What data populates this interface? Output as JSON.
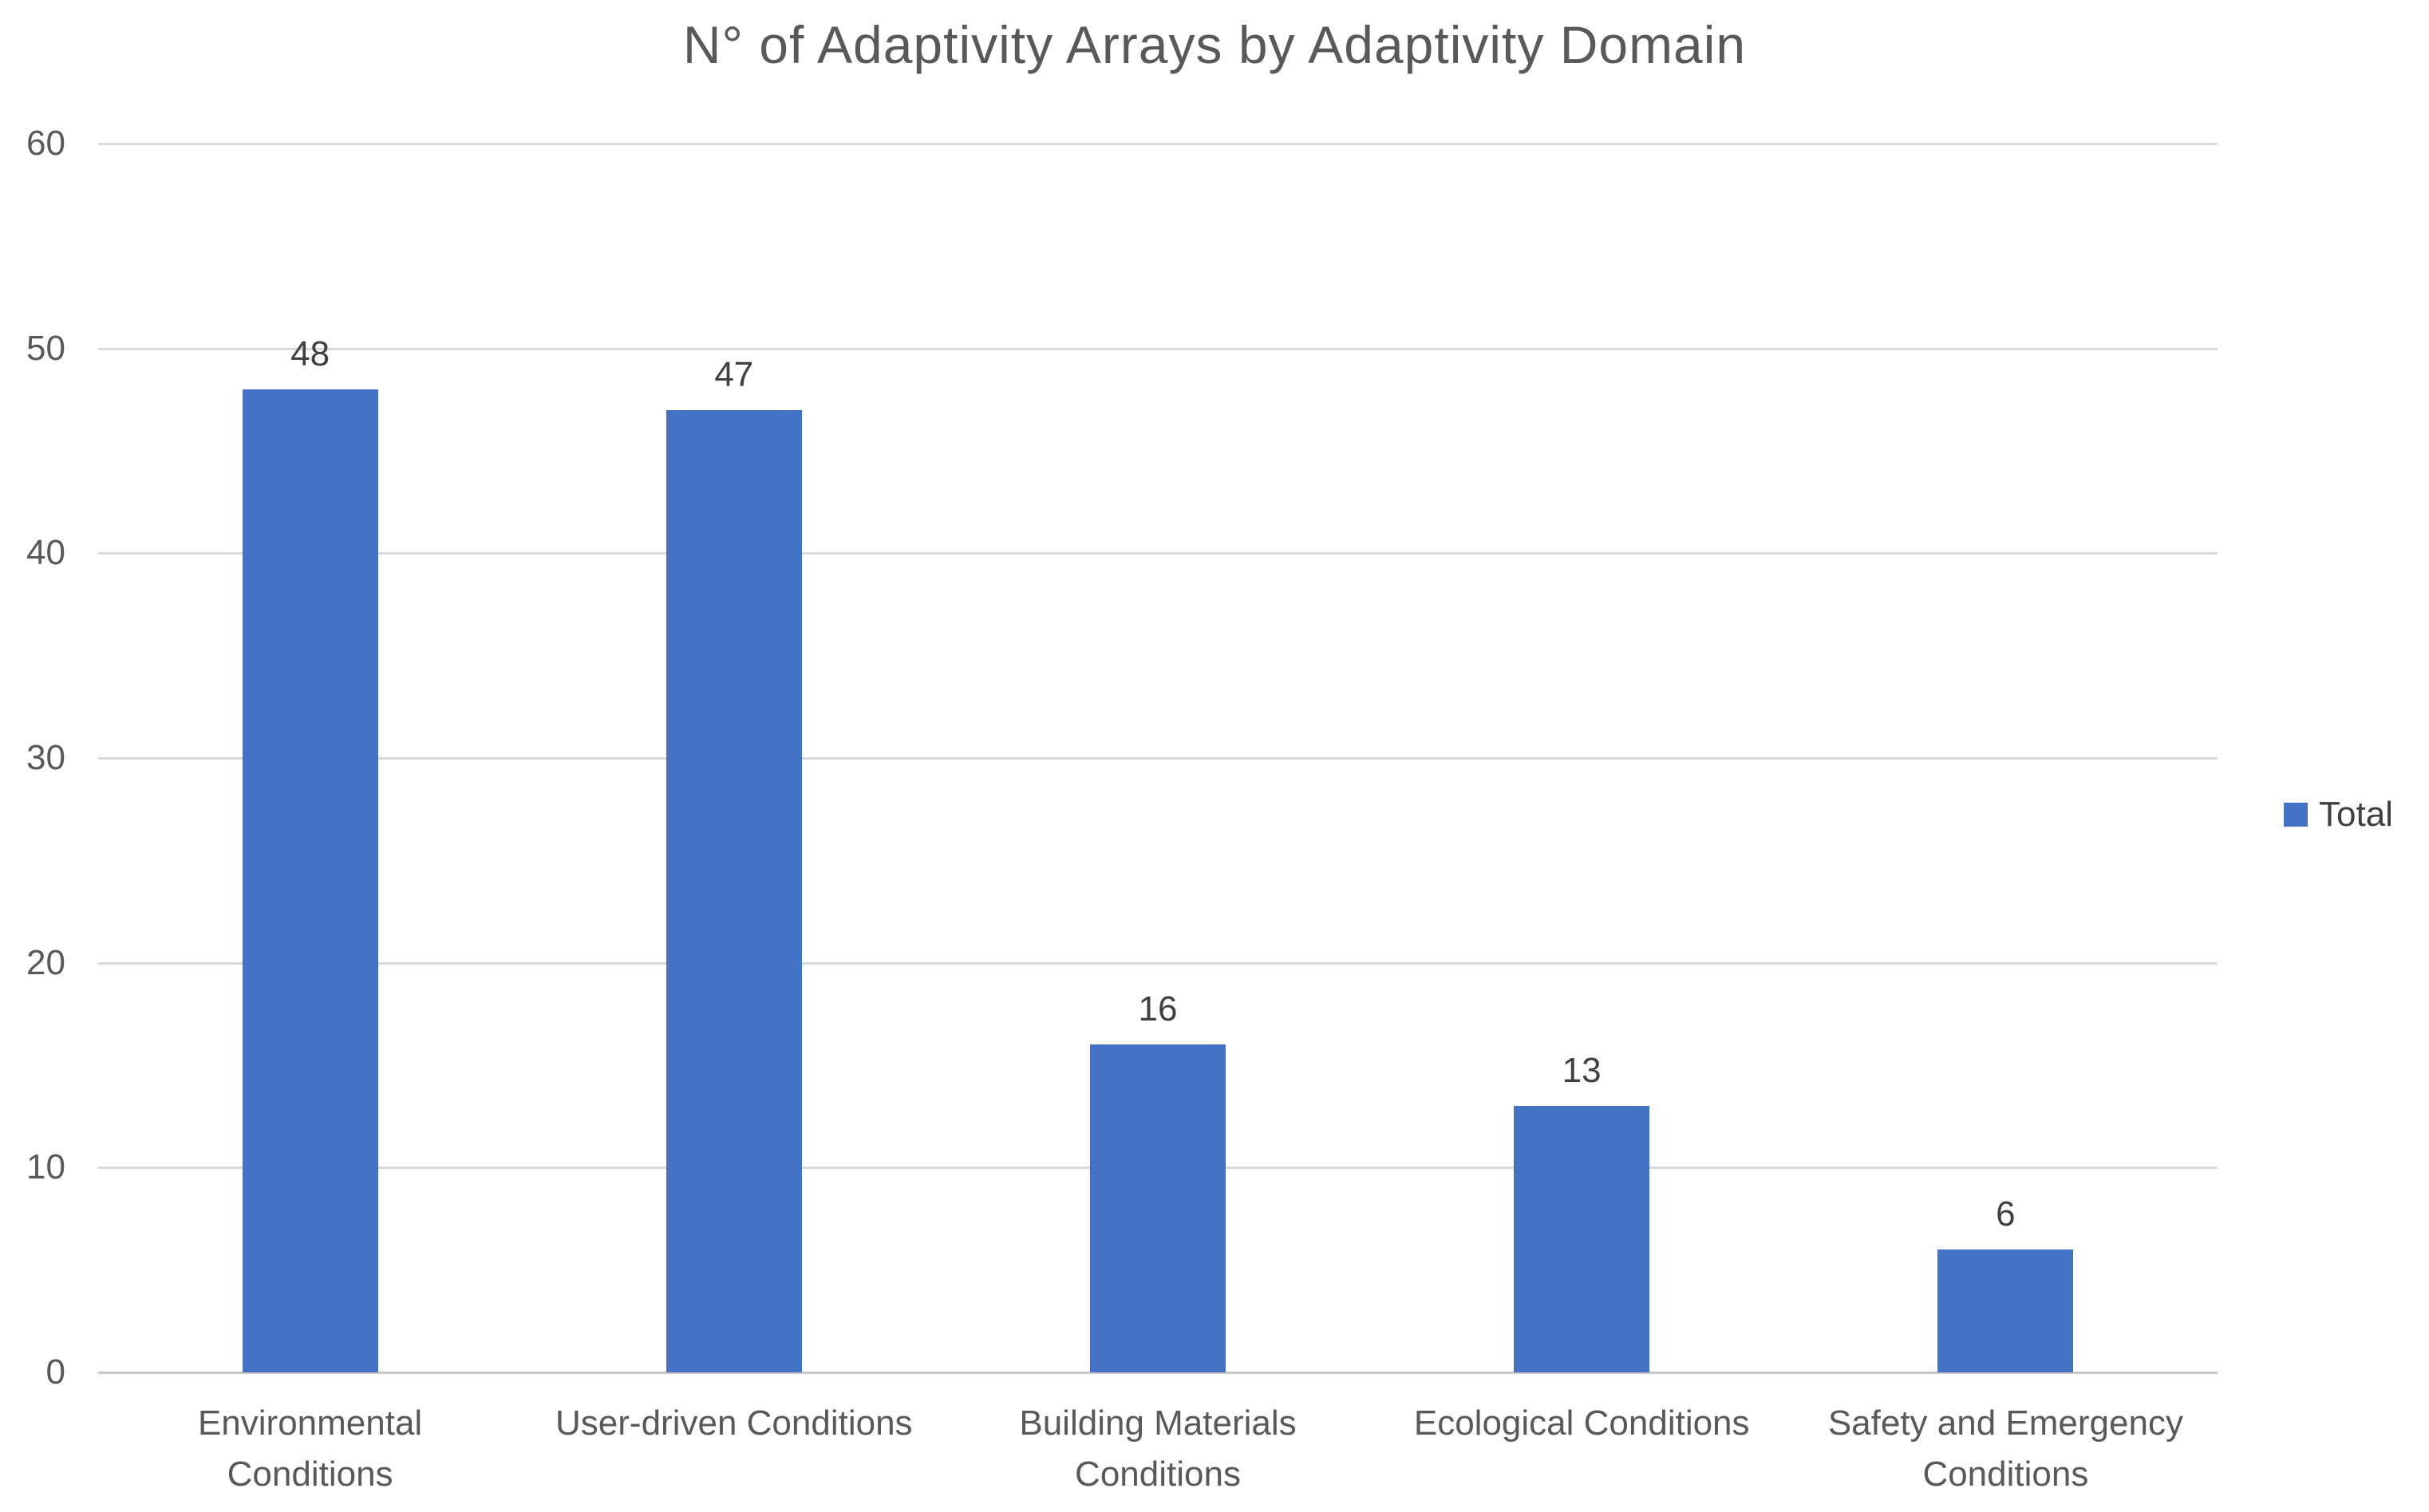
{
  "chart_data": {
    "type": "bar",
    "title": "N° of Adaptivity Arrays by Adaptivity Domain",
    "categories": [
      "Environmental Conditions",
      "User-driven Conditions",
      "Building Materials Conditions",
      "Ecological Conditions",
      "Safety and Emergency Conditions"
    ],
    "category_label_lines": [
      [
        "Environmental",
        "Conditions"
      ],
      [
        "User-driven Conditions"
      ],
      [
        "Building Materials",
        "Conditions"
      ],
      [
        "Ecological Conditions"
      ],
      [
        "Safety and Emergency",
        "Conditions"
      ]
    ],
    "series": [
      {
        "name": "Total",
        "values": [
          48,
          47,
          16,
          13,
          6
        ]
      }
    ],
    "data_labels": [
      48,
      47,
      16,
      13,
      6
    ],
    "xlabel": "",
    "ylabel": "",
    "ylim": [
      0,
      60
    ],
    "yticks": [
      0,
      10,
      20,
      30,
      40,
      50,
      60
    ],
    "grid": "horizontal",
    "legend": {
      "position": "right",
      "entries": [
        {
          "label": "Total",
          "color": "#4472C4"
        }
      ]
    },
    "colors": {
      "bar": "#4472C4",
      "title_text": "#595959",
      "axis_text": "#595959",
      "category_text": "#595959",
      "data_label_text": "#404040",
      "gridline": "#D9D9D9",
      "axis_line": "#C6C6C6",
      "background": "#FFFFFF"
    }
  }
}
